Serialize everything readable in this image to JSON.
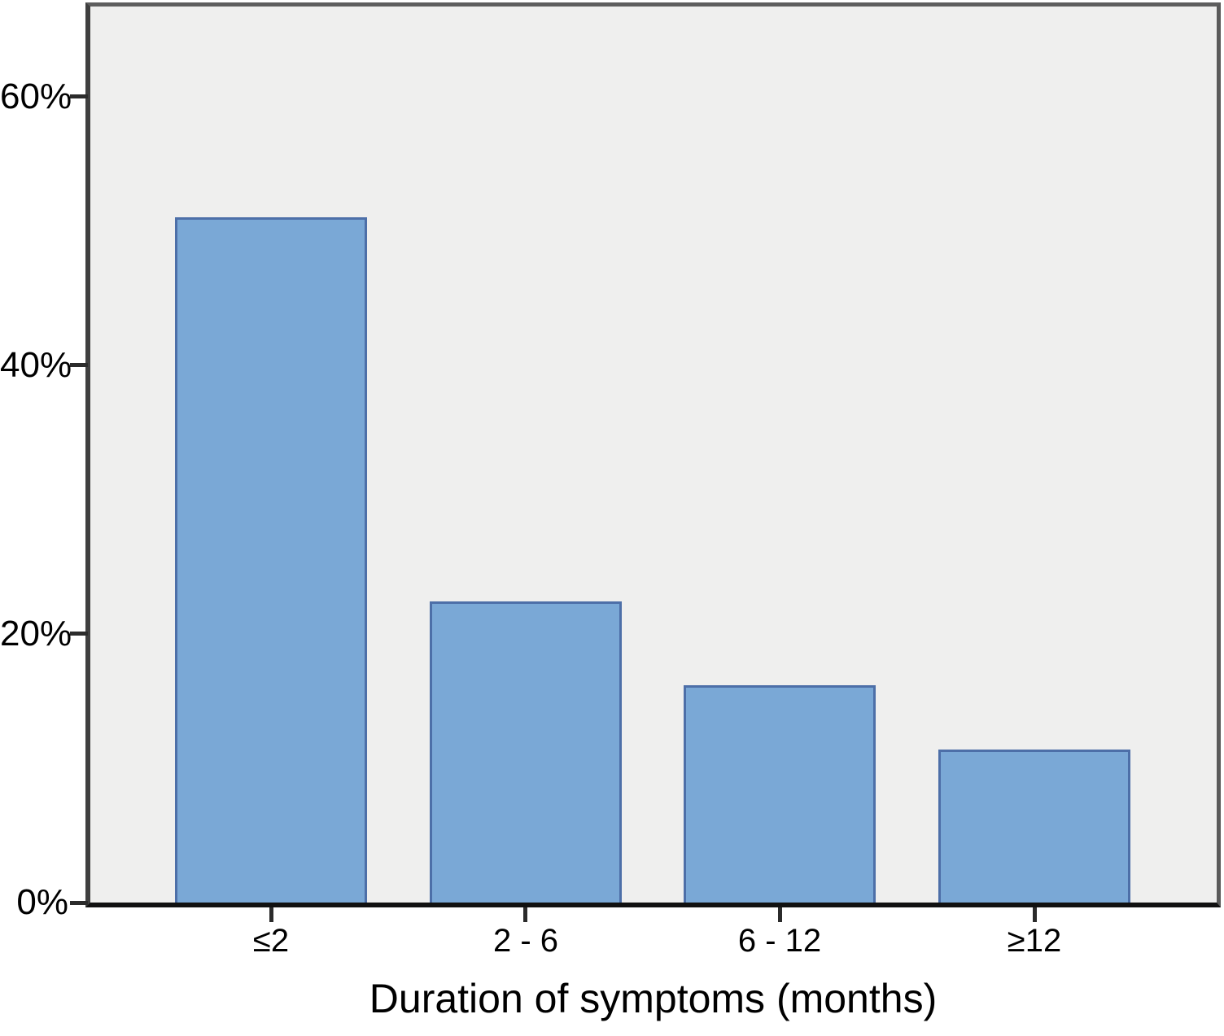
{
  "chart_data": {
    "type": "bar",
    "categories": [
      "≤2",
      "2 - 6",
      "6 - 12",
      "≥12"
    ],
    "values": [
      51,
      22.4,
      16.2,
      11.4
    ],
    "title": "",
    "xlabel": "Duration of symptoms (months)",
    "ylabel": "",
    "ylim": [
      0,
      66.7
    ],
    "yticks": [
      0,
      20,
      40,
      60
    ],
    "ytick_labels": [
      "0%",
      "20%",
      "40%",
      "60%"
    ],
    "grid": false,
    "legend": null,
    "colors": {
      "bar_fill": "#7aa8d6",
      "bar_border": "#4d6fa8",
      "plot_background": "#efefee",
      "axis_frame": "#5e5e5e",
      "axis_baseline": "#111111",
      "text": "#000000"
    }
  }
}
